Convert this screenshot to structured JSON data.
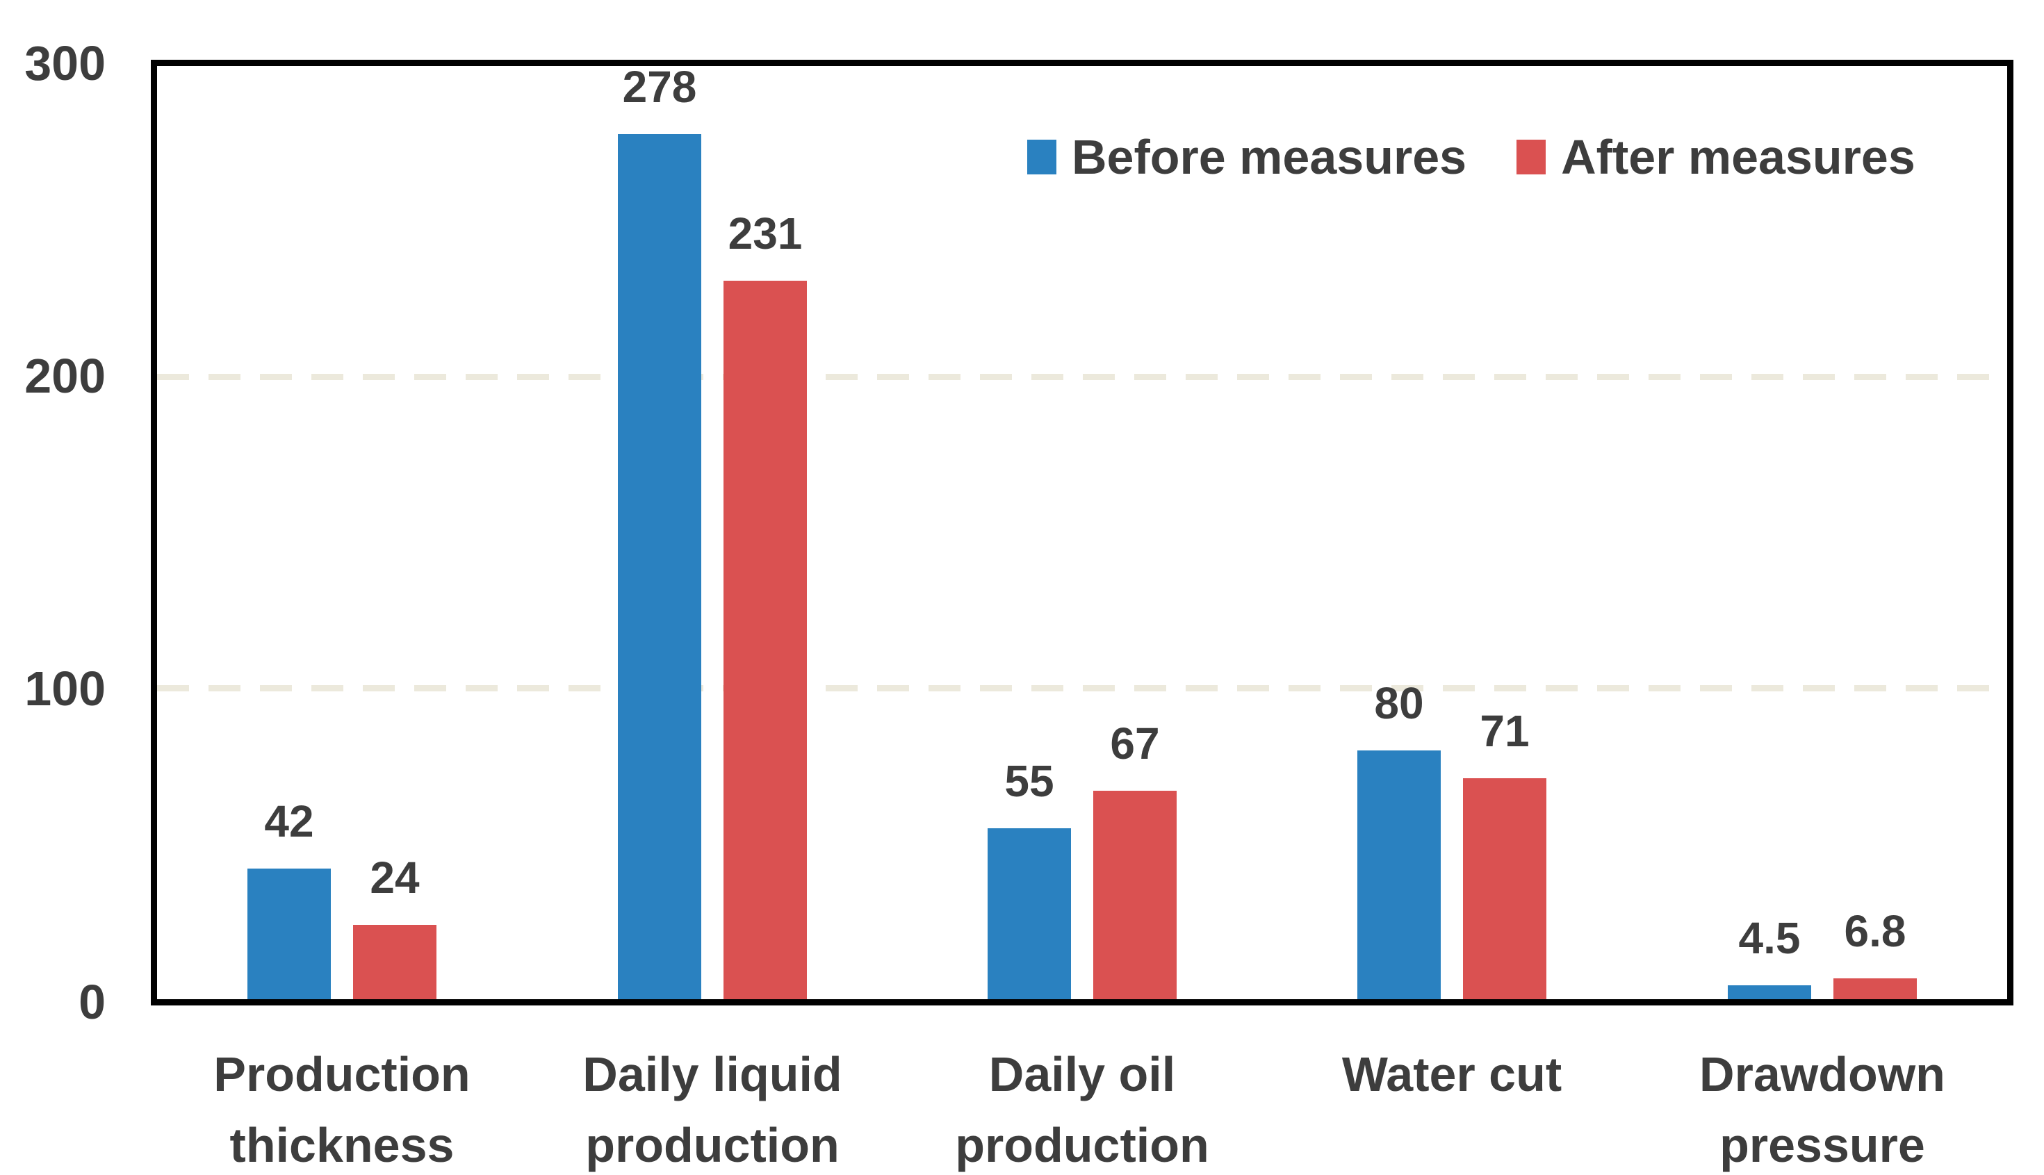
{
  "chart_data": {
    "type": "bar",
    "title": "",
    "categories": [
      "Production thickness",
      "Daily liquid production",
      "Daily oil production",
      "Water cut",
      "Drawdown pressure"
    ],
    "category_label_lines": [
      [
        "Production",
        "thickness"
      ],
      [
        "Daily liquid",
        "production"
      ],
      [
        "Daily oil",
        "production"
      ],
      [
        "Water cut"
      ],
      [
        "Drawdown",
        "pressure"
      ]
    ],
    "series": [
      {
        "name": "Before measures",
        "color": "#2a81c0",
        "values": [
          42,
          278,
          55,
          80,
          4.5
        ]
      },
      {
        "name": "After measures",
        "color": "#da5151",
        "values": [
          24,
          231,
          67,
          71,
          6.8
        ]
      }
    ],
    "data_labels_shown": true,
    "xlabel": "",
    "ylabel": "",
    "ylim": [
      0,
      300
    ],
    "yticks": [
      0,
      100,
      200,
      300
    ],
    "grid_values": [
      100,
      200
    ],
    "grid_style": "horizontal dashed",
    "legend_position": "top-right inside plot"
  },
  "colors": {
    "bar_before": "#2a81c0",
    "bar_after": "#da5151",
    "text": "#3d3d3d",
    "gridline": "#ece9dc",
    "axis_border": "#000000",
    "background": "#ffffff"
  }
}
